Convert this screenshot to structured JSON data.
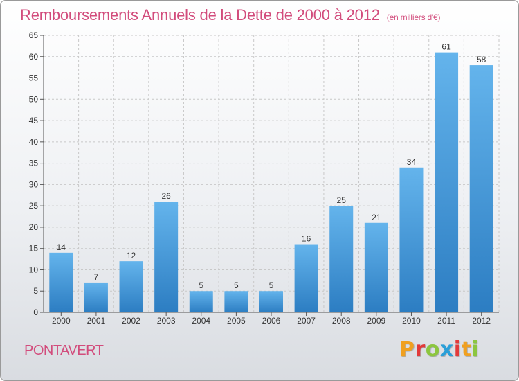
{
  "header": {
    "title": "Remboursements Annuels de la Dette de 2000 à 2012",
    "unit": "(en milliers d'€)"
  },
  "footer": {
    "commune": "PONTAVERT",
    "brand": "Proxiti",
    "brand_colors": [
      "#f0a020",
      "#e23a3a",
      "#8cc63f",
      "#2a9fd8",
      "#e23a3a",
      "#f0a020",
      "#8cc63f"
    ]
  },
  "chart_data": {
    "type": "bar",
    "title": "Remboursements Annuels de la Dette de 2000 à 2012",
    "xlabel": "",
    "ylabel": "",
    "categories": [
      "2000",
      "2001",
      "2002",
      "2003",
      "2004",
      "2005",
      "2006",
      "2007",
      "2008",
      "2009",
      "2010",
      "2011",
      "2012"
    ],
    "values": [
      14,
      7,
      12,
      26,
      5,
      5,
      5,
      16,
      25,
      21,
      34,
      61,
      58
    ],
    "ylim": [
      0,
      65
    ],
    "yticks": [
      0,
      5,
      10,
      15,
      20,
      25,
      30,
      35,
      40,
      45,
      50,
      55,
      60,
      65
    ],
    "grid": true,
    "legend": "none",
    "colors": {
      "bar_light": "#64b4ec",
      "bar_dark": "#2c7dc2",
      "grid": "#c8c8c8",
      "axis": "#555555",
      "text": "#333333"
    }
  }
}
